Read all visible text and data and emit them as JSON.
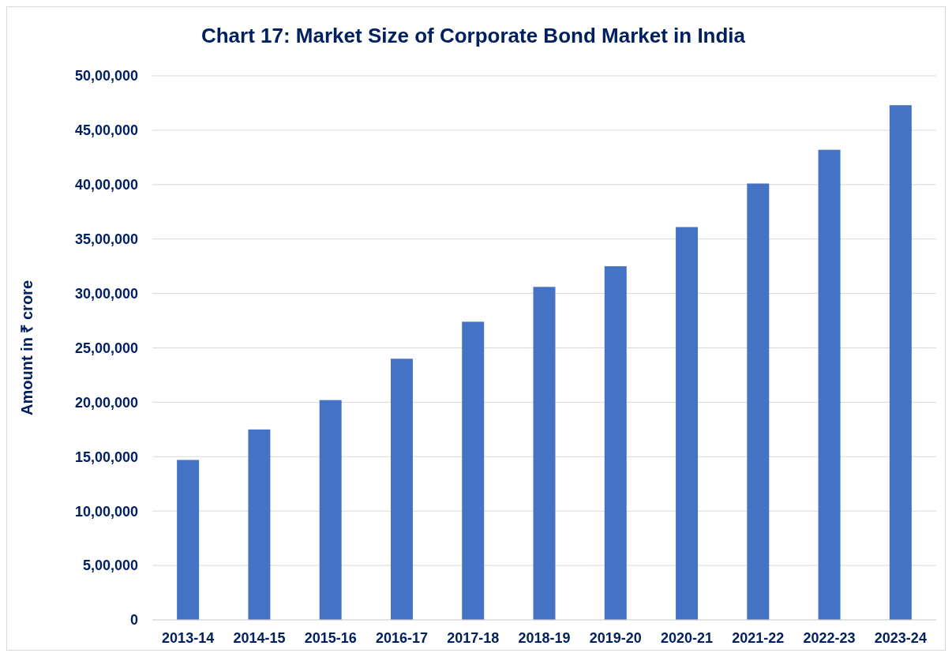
{
  "chart_data": {
    "type": "bar",
    "title": "Chart 17: Market Size of Corporate Bond Market in India",
    "ylabel": "Amount in ₹ crore",
    "categories": [
      "2013-14",
      "2014-15",
      "2015-16",
      "2016-17",
      "2017-18",
      "2018-19",
      "2019-20",
      "2020-21",
      "2021-22",
      "2022-23",
      "2023-24"
    ],
    "values": [
      1470000,
      1750000,
      2020000,
      2400000,
      2740000,
      3060000,
      3250000,
      3610000,
      4010000,
      4320000,
      4730000
    ],
    "color": "#4472c4",
    "ylim": [
      0,
      5000000
    ],
    "yticks": [
      0,
      {
        "value": 500000,
        "label": "5,00,000"
      },
      {
        "value": 1000000,
        "label": "10,00,000"
      },
      {
        "value": 1500000,
        "label": "15,00,000"
      },
      {
        "value": 2000000,
        "label": "20,00,000"
      },
      {
        "value": 2500000,
        "label": "25,00,000"
      },
      {
        "value": 3000000,
        "label": "30,00,000"
      },
      {
        "value": 3500000,
        "label": "35,00,000"
      },
      {
        "value": 4000000,
        "label": "40,00,000"
      },
      {
        "value": 4500000,
        "label": "45,00,000"
      },
      {
        "value": 5000000,
        "label": "50,00,000"
      }
    ],
    "grid": "y"
  }
}
